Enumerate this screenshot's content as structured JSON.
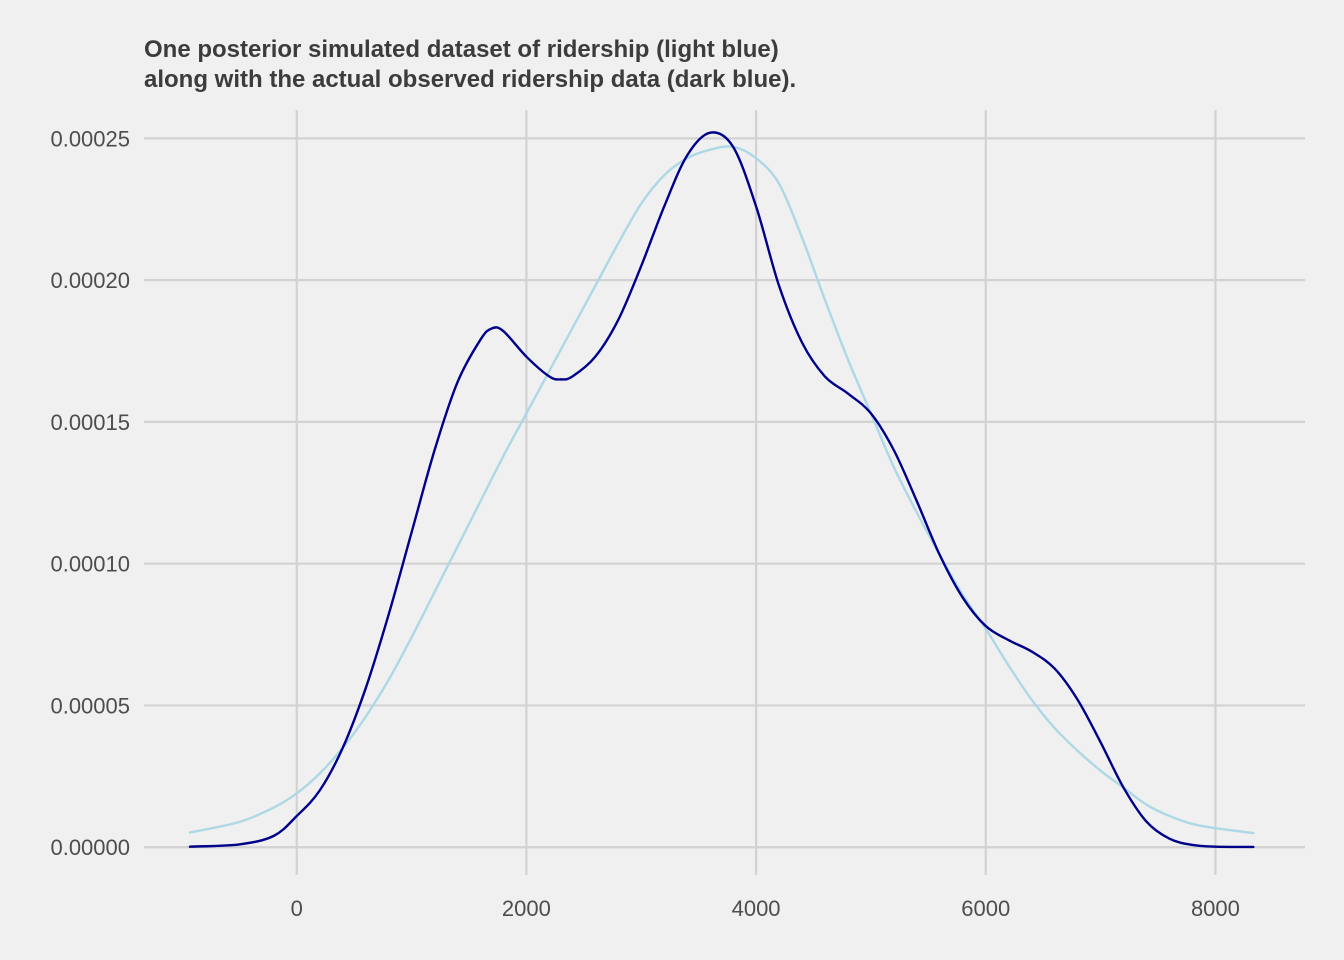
{
  "chart_data": {
    "type": "line",
    "title": [
      "One posterior simulated dataset of ridership (light blue)",
      "along with the actual observed ridership data (dark blue)."
    ],
    "xlabel": "",
    "ylabel": "",
    "xlim": [
      -1330,
      8780
    ],
    "ylim": [
      -9.8e-06,
      0.00026
    ],
    "x_ticks": [
      0,
      2000,
      4000,
      6000,
      8000
    ],
    "x_tick_labels": [
      "0",
      "2000",
      "4000",
      "6000",
      "8000"
    ],
    "y_ticks": [
      0,
      5e-05,
      0.0001,
      0.00015,
      0.0002,
      0.00025
    ],
    "y_tick_labels": [
      "0.00000",
      "0.00005",
      "0.00010",
      "0.00015",
      "0.00020",
      "0.00025"
    ],
    "grid": true,
    "legend": "none",
    "series": [
      {
        "color": "#add8e6",
        "x": [
          -930,
          -500,
          -200,
          0,
          200,
          400,
          600,
          800,
          1000,
          1200,
          1400,
          1600,
          1800,
          2000,
          2200,
          2400,
          2600,
          2800,
          3000,
          3200,
          3400,
          3600,
          3800,
          4000,
          4200,
          4400,
          4600,
          4800,
          5000,
          5200,
          5400,
          5600,
          5800,
          6000,
          6200,
          6400,
          6600,
          6800,
          7000,
          7200,
          7400,
          7600,
          7800,
          8000,
          8330
        ],
        "y": [
          5.2e-06,
          8.9e-06,
          1.4e-05,
          1.9e-05,
          2.6e-05,
          3.5e-05,
          4.6e-05,
          5.9e-05,
          7.4e-05,
          9e-05,
          0.000106,
          0.000122,
          0.000138,
          0.000153,
          0.000168,
          0.000183,
          0.000198,
          0.000213,
          0.000227,
          0.000237,
          0.000243,
          0.000246,
          0.000247,
          0.000243,
          0.000234,
          0.000215,
          0.000193,
          0.000172,
          0.000153,
          0.000134,
          0.000118,
          0.000103,
          8.9e-05,
          7.7e-05,
          6.4e-05,
          5.2e-05,
          4.2e-05,
          3.4e-05,
          2.7e-05,
          2.1e-05,
          1.5e-05,
          1.1e-05,
          8.2e-06,
          6.7e-06,
          5e-06
        ]
      },
      {
        "color": "#00008b",
        "x": [
          -930,
          -500,
          -200,
          0,
          200,
          400,
          600,
          800,
          1000,
          1200,
          1400,
          1600,
          1700,
          1800,
          2000,
          2200,
          2300,
          2400,
          2600,
          2800,
          3000,
          3200,
          3400,
          3600,
          3800,
          4000,
          4200,
          4400,
          4600,
          4800,
          5000,
          5200,
          5400,
          5600,
          5800,
          6000,
          6200,
          6400,
          6600,
          6800,
          7000,
          7200,
          7400,
          7600,
          7800,
          8000,
          8330
        ],
        "y": [
          2e-07,
          1e-06,
          4e-06,
          1.1e-05,
          2e-05,
          3.5e-05,
          5.6e-05,
          8.2e-05,
          0.000111,
          0.00014,
          0.000164,
          0.000179,
          0.000183,
          0.000182,
          0.000173,
          0.000166,
          0.000165,
          0.000166,
          0.000173,
          0.000186,
          0.000205,
          0.000226,
          0.000244,
          0.000252,
          0.000247,
          0.000226,
          0.000198,
          0.000178,
          0.000166,
          0.00016,
          0.000153,
          0.00014,
          0.000122,
          0.000103,
          8.8e-05,
          7.8e-05,
          7.3e-05,
          6.9e-05,
          6.3e-05,
          5.2e-05,
          3.7e-05,
          2.1e-05,
          9e-06,
          3e-06,
          8e-07,
          2e-07,
          1e-07
        ]
      }
    ]
  }
}
